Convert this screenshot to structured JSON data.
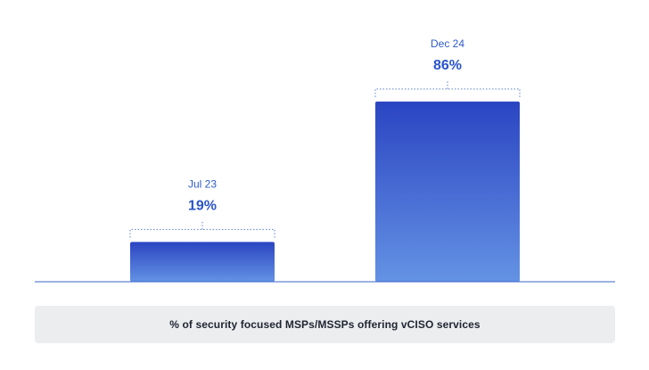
{
  "chart_data": {
    "type": "bar",
    "categories": [
      "Jul 23",
      "Dec 24"
    ],
    "values": [
      19,
      86
    ],
    "value_labels": [
      "19%",
      "86%"
    ],
    "ylim": [
      0,
      100
    ],
    "grid": false,
    "legend": "none",
    "xlabel": "% of security focused MSPs/MSSPs offering vCISO services",
    "ylabel": ""
  },
  "colors": {
    "bar_top": "#2b45c2",
    "bar_bottom": "#6492e4",
    "category_text": "#2f5bc9",
    "value_text": "#2a55c8",
    "bracket": "#5e80d0",
    "baseline": "#3a64c8",
    "caption_bg": "#ebedef",
    "caption_text": "#1f2430"
  }
}
